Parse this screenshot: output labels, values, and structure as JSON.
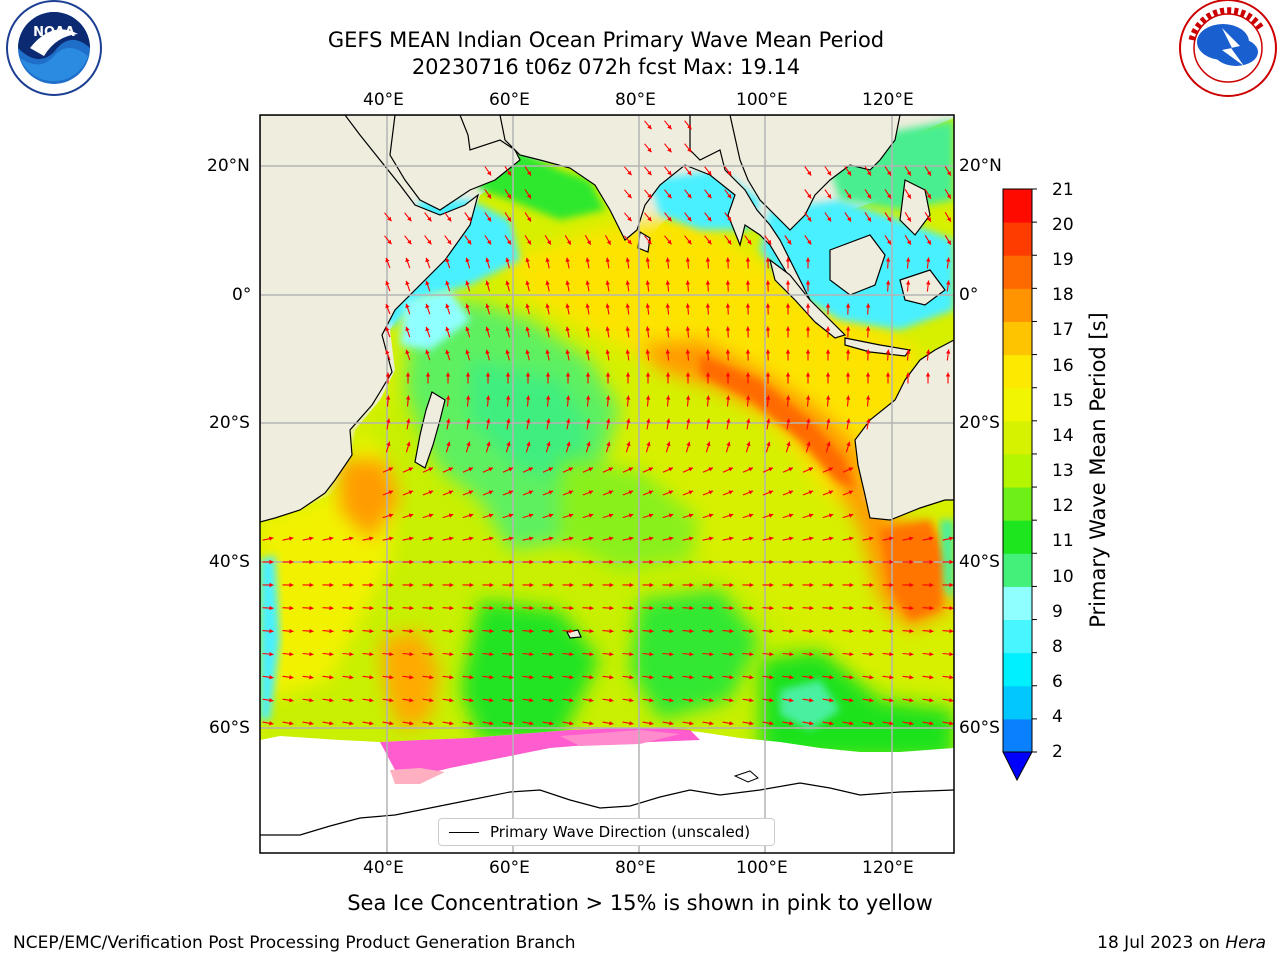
{
  "header": {
    "title_line1": "GEFS MEAN Indian Ocean Primary Wave Mean Period",
    "title_line2": "20230716 t06z 072h fcst   Max: 19.14"
  },
  "logos": {
    "left": {
      "name": "NOAA",
      "ring_text": "NATIONAL OCEANIC AND ATMOSPHERIC ADMINISTRATION",
      "bottom_text": "U.S. DEPARTMENT OF COMMERCE"
    },
    "right": {
      "ring_text": "NATIONAL WEATHER SERVICE"
    }
  },
  "map": {
    "projection_extent": {
      "lon": [
        20,
        130
      ],
      "lat": [
        -70,
        28
      ]
    },
    "top_lon_labels": [
      "40°E",
      "60°E",
      "80°E",
      "100°E",
      "120°E"
    ],
    "bottom_lon_labels": [
      "40°E",
      "60°E",
      "80°E",
      "100°E",
      "120°E"
    ],
    "left_lat_labels": [
      "20°N",
      "0°",
      "20°S",
      "40°S",
      "60°S"
    ],
    "right_lat_labels": [
      "20°N",
      "0°",
      "20°S",
      "40°S",
      "60°S"
    ],
    "legend_label": "Primary Wave Direction (unscaled)",
    "land_color": "#efedde",
    "arrow_color": "#ff0000"
  },
  "colorbar": {
    "title": "Primary Wave Mean Period [s]",
    "ticks": [
      "21",
      "20",
      "19",
      "18",
      "17",
      "16",
      "15",
      "14",
      "13",
      "12",
      "11",
      "10",
      "9",
      "8",
      "6",
      "4",
      "2"
    ],
    "colors_bottom_to_top": [
      "#0a80ff",
      "#00c8ff",
      "#00f0ff",
      "#48f6ff",
      "#90ffff",
      "#42f07a",
      "#1ee61e",
      "#6eef18",
      "#b4f500",
      "#d6f200",
      "#f2f500",
      "#fde800",
      "#ffc400",
      "#ff9400",
      "#ff6a00",
      "#ff3c00",
      "#ff0a00"
    ],
    "extend_color": "#0000ff"
  },
  "caption": "Sea Ice Concentration > 15% is shown in pink to yellow",
  "footer": {
    "left": "NCEP/EMC/Verification Post Processing Product Generation Branch",
    "right_prefix": "18 Jul 2023 on ",
    "right_host": "Hera"
  }
}
